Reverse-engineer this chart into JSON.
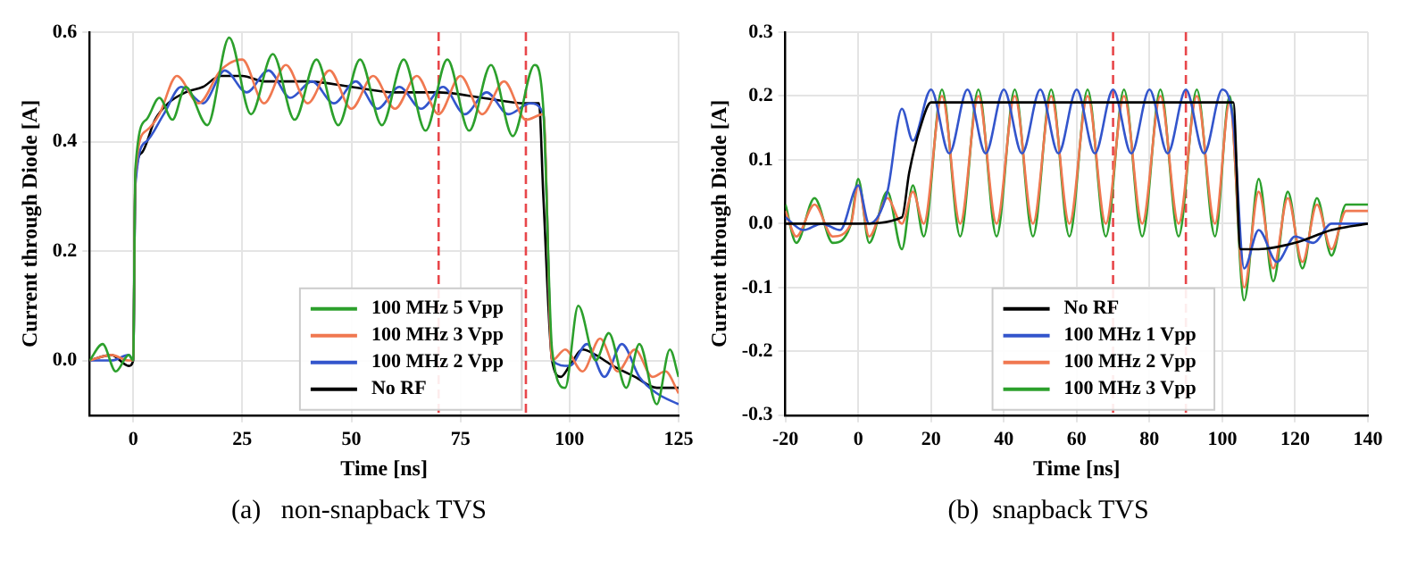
{
  "chart_data": [
    {
      "type": "line",
      "xlabel": "Time [ns]",
      "ylabel": "Current through Diode [A]",
      "annotations": [
        "(a)   non-snapback TVS"
      ],
      "xlim": [
        -10,
        125
      ],
      "xticks": [
        0,
        25,
        50,
        75,
        100,
        125
      ],
      "ylim": [
        -0.1,
        0.6
      ],
      "yticks": [
        {
          "value": 0,
          "label": "0.0"
        },
        {
          "value": 0.2,
          "label": "0.2"
        },
        {
          "value": 0.4,
          "label": "0.4"
        },
        {
          "value": 0.6,
          "label": "0.6"
        }
      ],
      "grid": true,
      "legend": "bottom",
      "marker": "none",
      "line_style": "solid",
      "ref_lines": [
        {
          "axis": "x",
          "value": 70,
          "color": "#e8464a",
          "line_style": "dashed"
        },
        {
          "axis": "x",
          "value": 90,
          "color": "#e8464a",
          "line_style": "dashed"
        }
      ],
      "series": [
        {
          "name": "100 MHz 5 Vpp",
          "color": "#2ca02c",
          "x": [
            -10,
            -7,
            -4,
            -1,
            0,
            0.5,
            3,
            6,
            9,
            12,
            17,
            22,
            27,
            32,
            37,
            42,
            47,
            52,
            57,
            62,
            67,
            72,
            77,
            82,
            87,
            92,
            94,
            96,
            99,
            102,
            106,
            109,
            113,
            116,
            120,
            123,
            125
          ],
          "values": [
            0,
            0.03,
            -0.02,
            0.01,
            0,
            0.35,
            0.44,
            0.48,
            0.44,
            0.5,
            0.43,
            0.59,
            0.45,
            0.56,
            0.44,
            0.55,
            0.43,
            0.55,
            0.43,
            0.55,
            0.42,
            0.55,
            0.42,
            0.54,
            0.41,
            0.54,
            0.46,
            0.02,
            -0.05,
            0.1,
            0.0,
            0.05,
            -0.05,
            0.03,
            -0.08,
            0.02,
            -0.03
          ]
        },
        {
          "name": "100 MHz 3 Vpp",
          "color": "#f07850",
          "x": [
            -10,
            -5,
            -1,
            0,
            0.5,
            3,
            6,
            10,
            15,
            20,
            25,
            30,
            35,
            40,
            45,
            50,
            55,
            60,
            65,
            70,
            75,
            80,
            85,
            90,
            94,
            96,
            99,
            103,
            107,
            111,
            115,
            119,
            122,
            125
          ],
          "values": [
            0,
            0.01,
            0,
            0,
            0.34,
            0.42,
            0.45,
            0.52,
            0.47,
            0.53,
            0.55,
            0.47,
            0.54,
            0.47,
            0.53,
            0.46,
            0.52,
            0.46,
            0.52,
            0.45,
            0.52,
            0.45,
            0.51,
            0.44,
            0.45,
            0.0,
            0.02,
            -0.02,
            0.04,
            -0.02,
            0.02,
            -0.03,
            -0.02,
            -0.06
          ]
        },
        {
          "name": "100 MHz 2 Vpp",
          "color": "#3355cc",
          "x": [
            -10,
            -5,
            -1,
            0,
            0.5,
            3,
            7,
            11,
            16,
            21,
            26,
            31,
            36,
            41,
            46,
            51,
            56,
            61,
            66,
            71,
            76,
            81,
            86,
            91,
            94,
            96,
            100,
            104,
            108,
            112,
            116,
            120,
            125
          ],
          "values": [
            0,
            0,
            0.01,
            0,
            0.32,
            0.4,
            0.45,
            0.5,
            0.47,
            0.53,
            0.49,
            0.53,
            0.48,
            0.51,
            0.47,
            0.51,
            0.46,
            0.5,
            0.46,
            0.5,
            0.45,
            0.49,
            0.45,
            0.47,
            0.45,
            0.0,
            -0.01,
            0.03,
            -0.03,
            0.03,
            -0.03,
            -0.06,
            -0.08
          ]
        },
        {
          "name": "No RF",
          "color": "#000000",
          "x": [
            -10,
            -5,
            -1,
            0,
            0.5,
            2,
            5,
            8,
            12,
            16,
            20,
            25,
            30,
            40,
            50,
            60,
            70,
            80,
            90,
            93,
            94,
            96,
            98,
            100,
            103,
            106,
            110,
            115,
            120,
            125
          ],
          "values": [
            0,
            0.01,
            -0.01,
            0,
            0.33,
            0.38,
            0.44,
            0.47,
            0.49,
            0.5,
            0.52,
            0.52,
            0.51,
            0.51,
            0.5,
            0.49,
            0.49,
            0.48,
            0.47,
            0.47,
            0.3,
            0.0,
            -0.03,
            -0.01,
            0.02,
            0.01,
            -0.01,
            -0.03,
            -0.05,
            -0.05
          ]
        }
      ]
    },
    {
      "type": "line",
      "xlabel": "Time [ns]",
      "ylabel": "Current through Diode [A]",
      "annotations": [
        "(b)  snapback TVS"
      ],
      "xlim": [
        -20,
        140
      ],
      "xticks": [
        -20,
        0,
        20,
        40,
        60,
        80,
        100,
        120,
        140
      ],
      "ylim": [
        -0.3,
        0.3
      ],
      "yticks": [
        {
          "value": -0.3,
          "label": "-0.3"
        },
        {
          "value": -0.2,
          "label": "-0.2"
        },
        {
          "value": -0.1,
          "label": "-0.1"
        },
        {
          "value": 0,
          "label": "0.0"
        },
        {
          "value": 0.1,
          "label": "0.1"
        },
        {
          "value": 0.2,
          "label": "0.2"
        },
        {
          "value": 0.3,
          "label": "0.3"
        }
      ],
      "grid": true,
      "legend": "bottom",
      "marker": "none",
      "line_style": "solid",
      "ref_lines": [
        {
          "axis": "x",
          "value": 70,
          "color": "#e8464a",
          "line_style": "dashed"
        },
        {
          "axis": "x",
          "value": 90,
          "color": "#e8464a",
          "line_style": "dashed"
        }
      ],
      "series": [
        {
          "name": "No RF",
          "color": "#000000",
          "x": [
            -20,
            0,
            12,
            14,
            17,
            20,
            25,
            103,
            105,
            110,
            120,
            130,
            140
          ],
          "values": [
            0,
            0,
            0.01,
            0.08,
            0.15,
            0.19,
            0.19,
            0.19,
            -0.04,
            -0.04,
            -0.03,
            -0.01,
            0
          ]
        },
        {
          "name": "100 MHz 1 Vpp",
          "color": "#3355cc",
          "x": [
            -20,
            -15,
            -10,
            -5,
            0,
            3,
            8,
            12,
            15,
            20,
            25,
            30,
            35,
            40,
            45,
            50,
            55,
            60,
            65,
            70,
            75,
            80,
            85,
            90,
            95,
            100,
            103,
            106,
            110,
            115,
            120,
            125,
            130,
            140
          ],
          "values": [
            0.01,
            -0.01,
            0,
            -0.01,
            0.06,
            0.0,
            0.05,
            0.18,
            0.13,
            0.21,
            0.11,
            0.21,
            0.11,
            0.21,
            0.11,
            0.21,
            0.11,
            0.21,
            0.11,
            0.21,
            0.11,
            0.21,
            0.11,
            0.21,
            0.11,
            0.21,
            0.16,
            -0.07,
            -0.01,
            -0.06,
            -0.02,
            -0.03,
            0,
            0
          ]
        },
        {
          "name": "100 MHz 2 Vpp",
          "color": "#f07850",
          "x": [
            -20,
            -17,
            -12,
            -7,
            -2,
            0,
            3,
            8,
            12,
            15,
            18,
            23,
            28,
            33,
            38,
            43,
            48,
            53,
            58,
            63,
            68,
            73,
            78,
            83,
            88,
            93,
            98,
            102,
            106,
            110,
            114,
            118,
            122,
            126,
            130,
            134,
            140
          ],
          "values": [
            0.02,
            -0.02,
            0.03,
            -0.02,
            0.0,
            0.06,
            -0.02,
            0.04,
            0.0,
            0.05,
            0.0,
            0.2,
            0.0,
            0.2,
            0.0,
            0.2,
            0.0,
            0.2,
            0.0,
            0.2,
            0.0,
            0.2,
            0.0,
            0.2,
            0.0,
            0.2,
            0.0,
            0.19,
            -0.1,
            0.05,
            -0.07,
            0.04,
            -0.06,
            0.03,
            -0.04,
            0.02,
            0.02
          ]
        },
        {
          "name": "100 MHz 3 Vpp",
          "color": "#2ca02c",
          "x": [
            -20,
            -17,
            -12,
            -7,
            -2,
            0,
            3,
            8,
            12,
            15,
            18,
            23,
            28,
            33,
            38,
            43,
            48,
            53,
            58,
            63,
            68,
            73,
            78,
            83,
            88,
            93,
            98,
            102,
            106,
            110,
            114,
            118,
            122,
            126,
            130,
            134,
            140
          ],
          "values": [
            0.03,
            -0.03,
            0.04,
            -0.03,
            0.0,
            0.07,
            -0.03,
            0.05,
            -0.04,
            0.06,
            -0.02,
            0.21,
            -0.02,
            0.21,
            -0.02,
            0.21,
            -0.02,
            0.21,
            -0.02,
            0.21,
            -0.02,
            0.21,
            -0.02,
            0.21,
            -0.02,
            0.21,
            -0.02,
            0.2,
            -0.12,
            0.07,
            -0.09,
            0.05,
            -0.07,
            0.04,
            -0.05,
            0.03,
            0.03
          ]
        }
      ]
    }
  ]
}
